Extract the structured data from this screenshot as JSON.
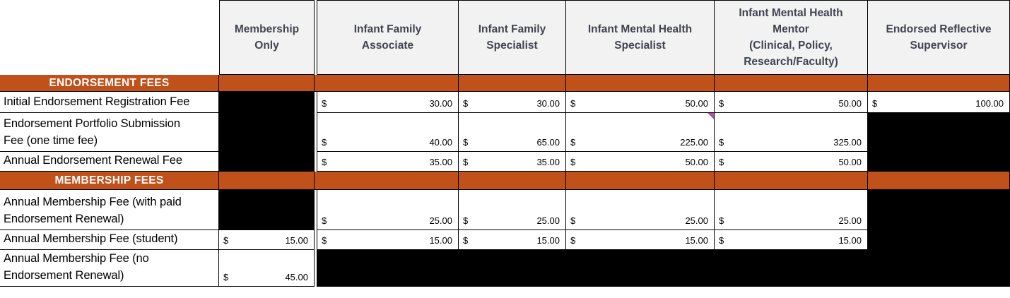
{
  "header": {
    "cols": [
      "",
      "Membership\nOnly",
      "Infant Family\nAssociate",
      "Infant Family\nSpecialist",
      "Infant Mental Health\nSpecialist",
      "Infant Mental Health\nMentor\n(Clinical, Policy,\nResearch/Faculty)",
      "Endorsed Reflective\nSupervisor"
    ]
  },
  "rows": [
    {
      "kind": "section",
      "label": "ENDORSEMENT FEES"
    },
    {
      "kind": "data",
      "label": "Initial Endorsement Registration Fee",
      "cells": [
        {
          "state": "redacted"
        },
        {
          "cur": "$",
          "amt": "30.00"
        },
        {
          "cur": "$",
          "amt": "30.00"
        },
        {
          "cur": "$",
          "amt": "50.00"
        },
        {
          "cur": "$",
          "amt": "50.00"
        },
        {
          "cur": "$",
          "amt": "100.00"
        }
      ]
    },
    {
      "kind": "data",
      "label": "Endorsement Portfolio Submission\nFee (one time fee)",
      "cells": [
        {
          "state": "redacted"
        },
        {
          "cur": "$",
          "amt": "40.00"
        },
        {
          "cur": "$",
          "amt": "65.00"
        },
        {
          "cur": "$",
          "amt": "225.00",
          "comment": true
        },
        {
          "cur": "$",
          "amt": "325.00"
        },
        {
          "state": "redacted"
        }
      ]
    },
    {
      "kind": "data",
      "label": "Annual Endorsement Renewal Fee",
      "cells": [
        {
          "state": "redacted"
        },
        {
          "cur": "$",
          "amt": "35.00"
        },
        {
          "cur": "$",
          "amt": "35.00"
        },
        {
          "cur": "$",
          "amt": "50.00"
        },
        {
          "cur": "$",
          "amt": "50.00"
        },
        {
          "state": "redacted"
        }
      ]
    },
    {
      "kind": "section",
      "label": "MEMBERSHIP FEES"
    },
    {
      "kind": "data",
      "label": "Annual Membership Fee (with paid\nEndorsement Renewal)",
      "cells": [
        {
          "state": "redacted"
        },
        {
          "cur": "$",
          "amt": "25.00"
        },
        {
          "cur": "$",
          "amt": "25.00"
        },
        {
          "cur": "$",
          "amt": "25.00"
        },
        {
          "cur": "$",
          "amt": "25.00"
        },
        {
          "state": "redacted"
        }
      ]
    },
    {
      "kind": "data",
      "label": "Annual Membership Fee (student)",
      "cells": [
        {
          "cur": "$",
          "amt": "15.00"
        },
        {
          "cur": "$",
          "amt": "15.00"
        },
        {
          "cur": "$",
          "amt": "15.00"
        },
        {
          "cur": "$",
          "amt": "15.00"
        },
        {
          "cur": "$",
          "amt": "15.00"
        },
        {
          "state": "redacted"
        }
      ]
    },
    {
      "kind": "data",
      "label": "Annual Membership Fee (no\nEndorsement Renewal)",
      "cells": [
        {
          "cur": "$",
          "amt": "45.00"
        },
        {
          "state": "redacted"
        },
        {
          "state": "redacted"
        },
        {
          "state": "redacted"
        },
        {
          "state": "redacted"
        },
        {
          "state": "redacted"
        }
      ]
    }
  ],
  "colors": {
    "section_header_bg": "#C1511B",
    "section_header_text": "#FFFFFF",
    "column_header_bg": "#F2F2F2",
    "column_header_text": "#3F4450",
    "redacted_cell": "#000000",
    "comment_flag": "#A855A8",
    "border": "#000000"
  }
}
